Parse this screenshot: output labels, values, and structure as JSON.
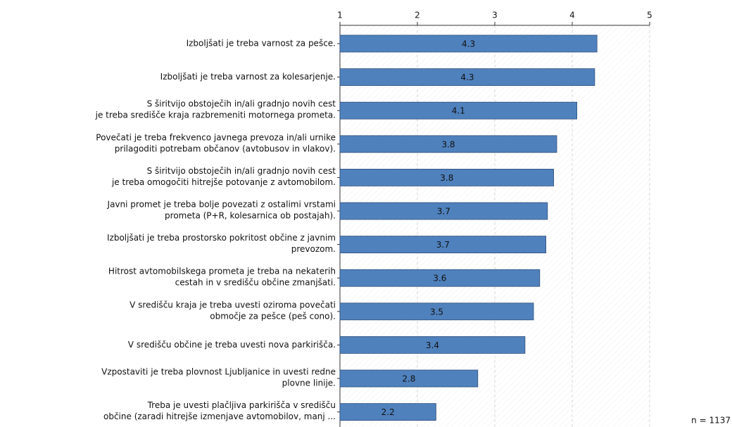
{
  "chart_data": {
    "type": "bar",
    "orientation": "horizontal",
    "categories": [
      [
        "Izboljšati je treba varnost za pešce."
      ],
      [
        "Izboljšati je treba varnost za kolesarjenje."
      ],
      [
        "S širitvijo obstoječih in/ali gradnjo novih cest",
        "je treba središče kraja razbremeniti motornega prometa."
      ],
      [
        "Povečati je treba frekvenco javnega prevoza in/ali urnike",
        "prilagoditi potrebam občanov (avtobusov in vlakov)."
      ],
      [
        "S širitvijo obstoječih in/ali gradnjo novih cest",
        "je treba omogočiti hitrejše potovanje  z avtomobilom."
      ],
      [
        "Javni promet je treba bolje povezati z ostalimi vrstami",
        "prometa (P+R, kolesarnica ob postajah)."
      ],
      [
        "Izboljšati je treba prostorsko pokritost občine z javnim",
        "prevozom."
      ],
      [
        "Hitrost avtomobilskega prometa je treba na nekaterih",
        "cestah in v središču občine zmanjšati."
      ],
      [
        "V središču kraja je treba uvesti oziroma povečati",
        "območje za pešce (peš cono)."
      ],
      [
        "V središču občine je treba uvesti nova parkirišča."
      ],
      [
        "Vzpostaviti je treba plovnost Ljubljanice in uvesti redne",
        "plovne linije."
      ],
      [
        "Treba je uvesti plačljiva parkirišča v središču",
        "občine (zaradi hitrejše izmenjave avtomobilov, manj ..."
      ]
    ],
    "values": [
      4.32,
      4.29,
      4.06,
      3.8,
      3.76,
      3.68,
      3.66,
      3.58,
      3.5,
      3.39,
      2.78,
      2.24
    ],
    "value_labels": [
      "4.3",
      "4.3",
      "4.1",
      "3.8",
      "3.8",
      "3.7",
      "3.7",
      "3.6",
      "3.5",
      "3.4",
      "2.8",
      "2.2"
    ],
    "color": "#4f81bd",
    "xlim": [
      1,
      5
    ],
    "xticks": [
      1,
      2,
      3,
      4,
      5
    ],
    "grid": true,
    "note": "n = 1137"
  }
}
